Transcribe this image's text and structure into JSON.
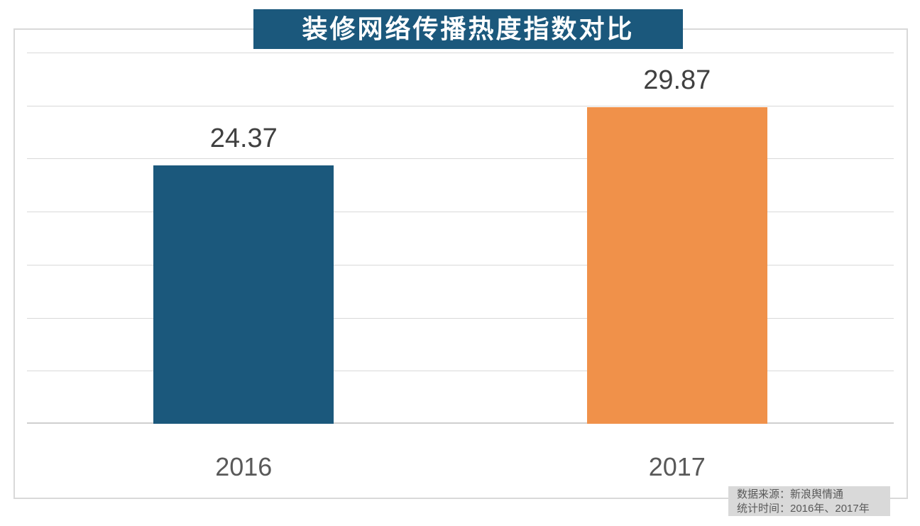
{
  "title": "装修网络传播热度指数对比",
  "chart_data": {
    "type": "bar",
    "title": "装修网络传播热度指数对比",
    "categories": [
      "2016",
      "2017"
    ],
    "values": [
      24.37,
      29.87
    ],
    "value_labels": [
      "24.37",
      "29.87"
    ],
    "bar_colors": [
      "#1B587C",
      "#F0914A"
    ],
    "xlabel": "",
    "ylabel": "",
    "ylim": [
      0,
      35
    ],
    "grid_step": 5,
    "grid": true,
    "legend": false,
    "y_axis_labels_shown": false,
    "value_labels_shown": true
  },
  "source": {
    "line1": "数据来源：新浪舆情通",
    "line2": "统计时间：2016年、2017年"
  },
  "colors": {
    "title_bg": "#1B587C",
    "title_text": "#FFFFFF",
    "gridline": "#D9D9D9",
    "axis_line": "#CFCFCF",
    "frame_border": "#D9D9D9",
    "value_label_text": "#404040",
    "category_label_text": "#595959",
    "source_bg": "#D9D9D9",
    "source_text": "#595959",
    "background": "#FFFFFF"
  }
}
